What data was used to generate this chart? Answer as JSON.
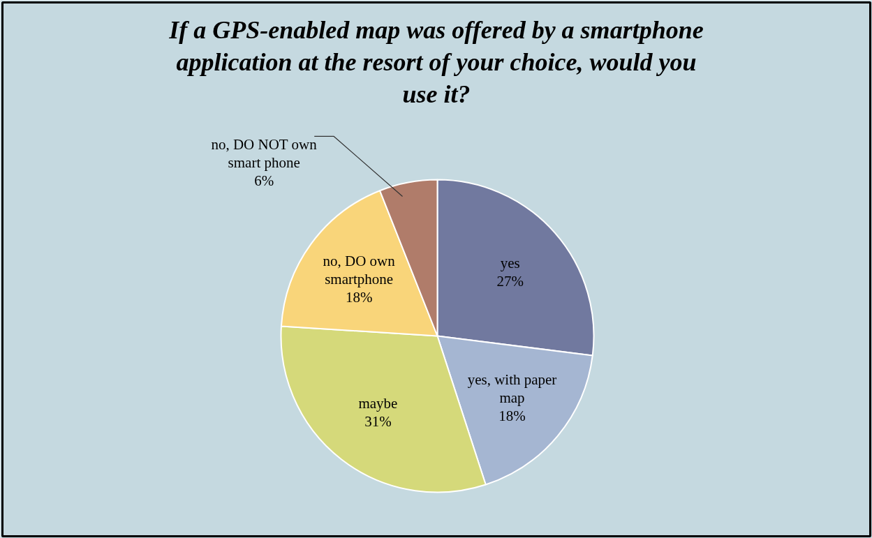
{
  "chart_data": {
    "type": "pie",
    "title": "If a GPS-enabled map was offered by a smartphone application at the resort of your choice, would you use it?",
    "categories": [
      "yes",
      "yes, with paper map",
      "maybe",
      "no, DO own smartphone",
      "no, DO NOT own smart phone"
    ],
    "values": [
      27,
      18,
      31,
      18,
      6
    ],
    "value_labels": [
      "27%",
      "18%",
      "31%",
      "18%",
      "6%"
    ],
    "colors": [
      "#71799f",
      "#a5b6d2",
      "#d5d97a",
      "#f9d57a",
      "#b07c6a"
    ]
  }
}
